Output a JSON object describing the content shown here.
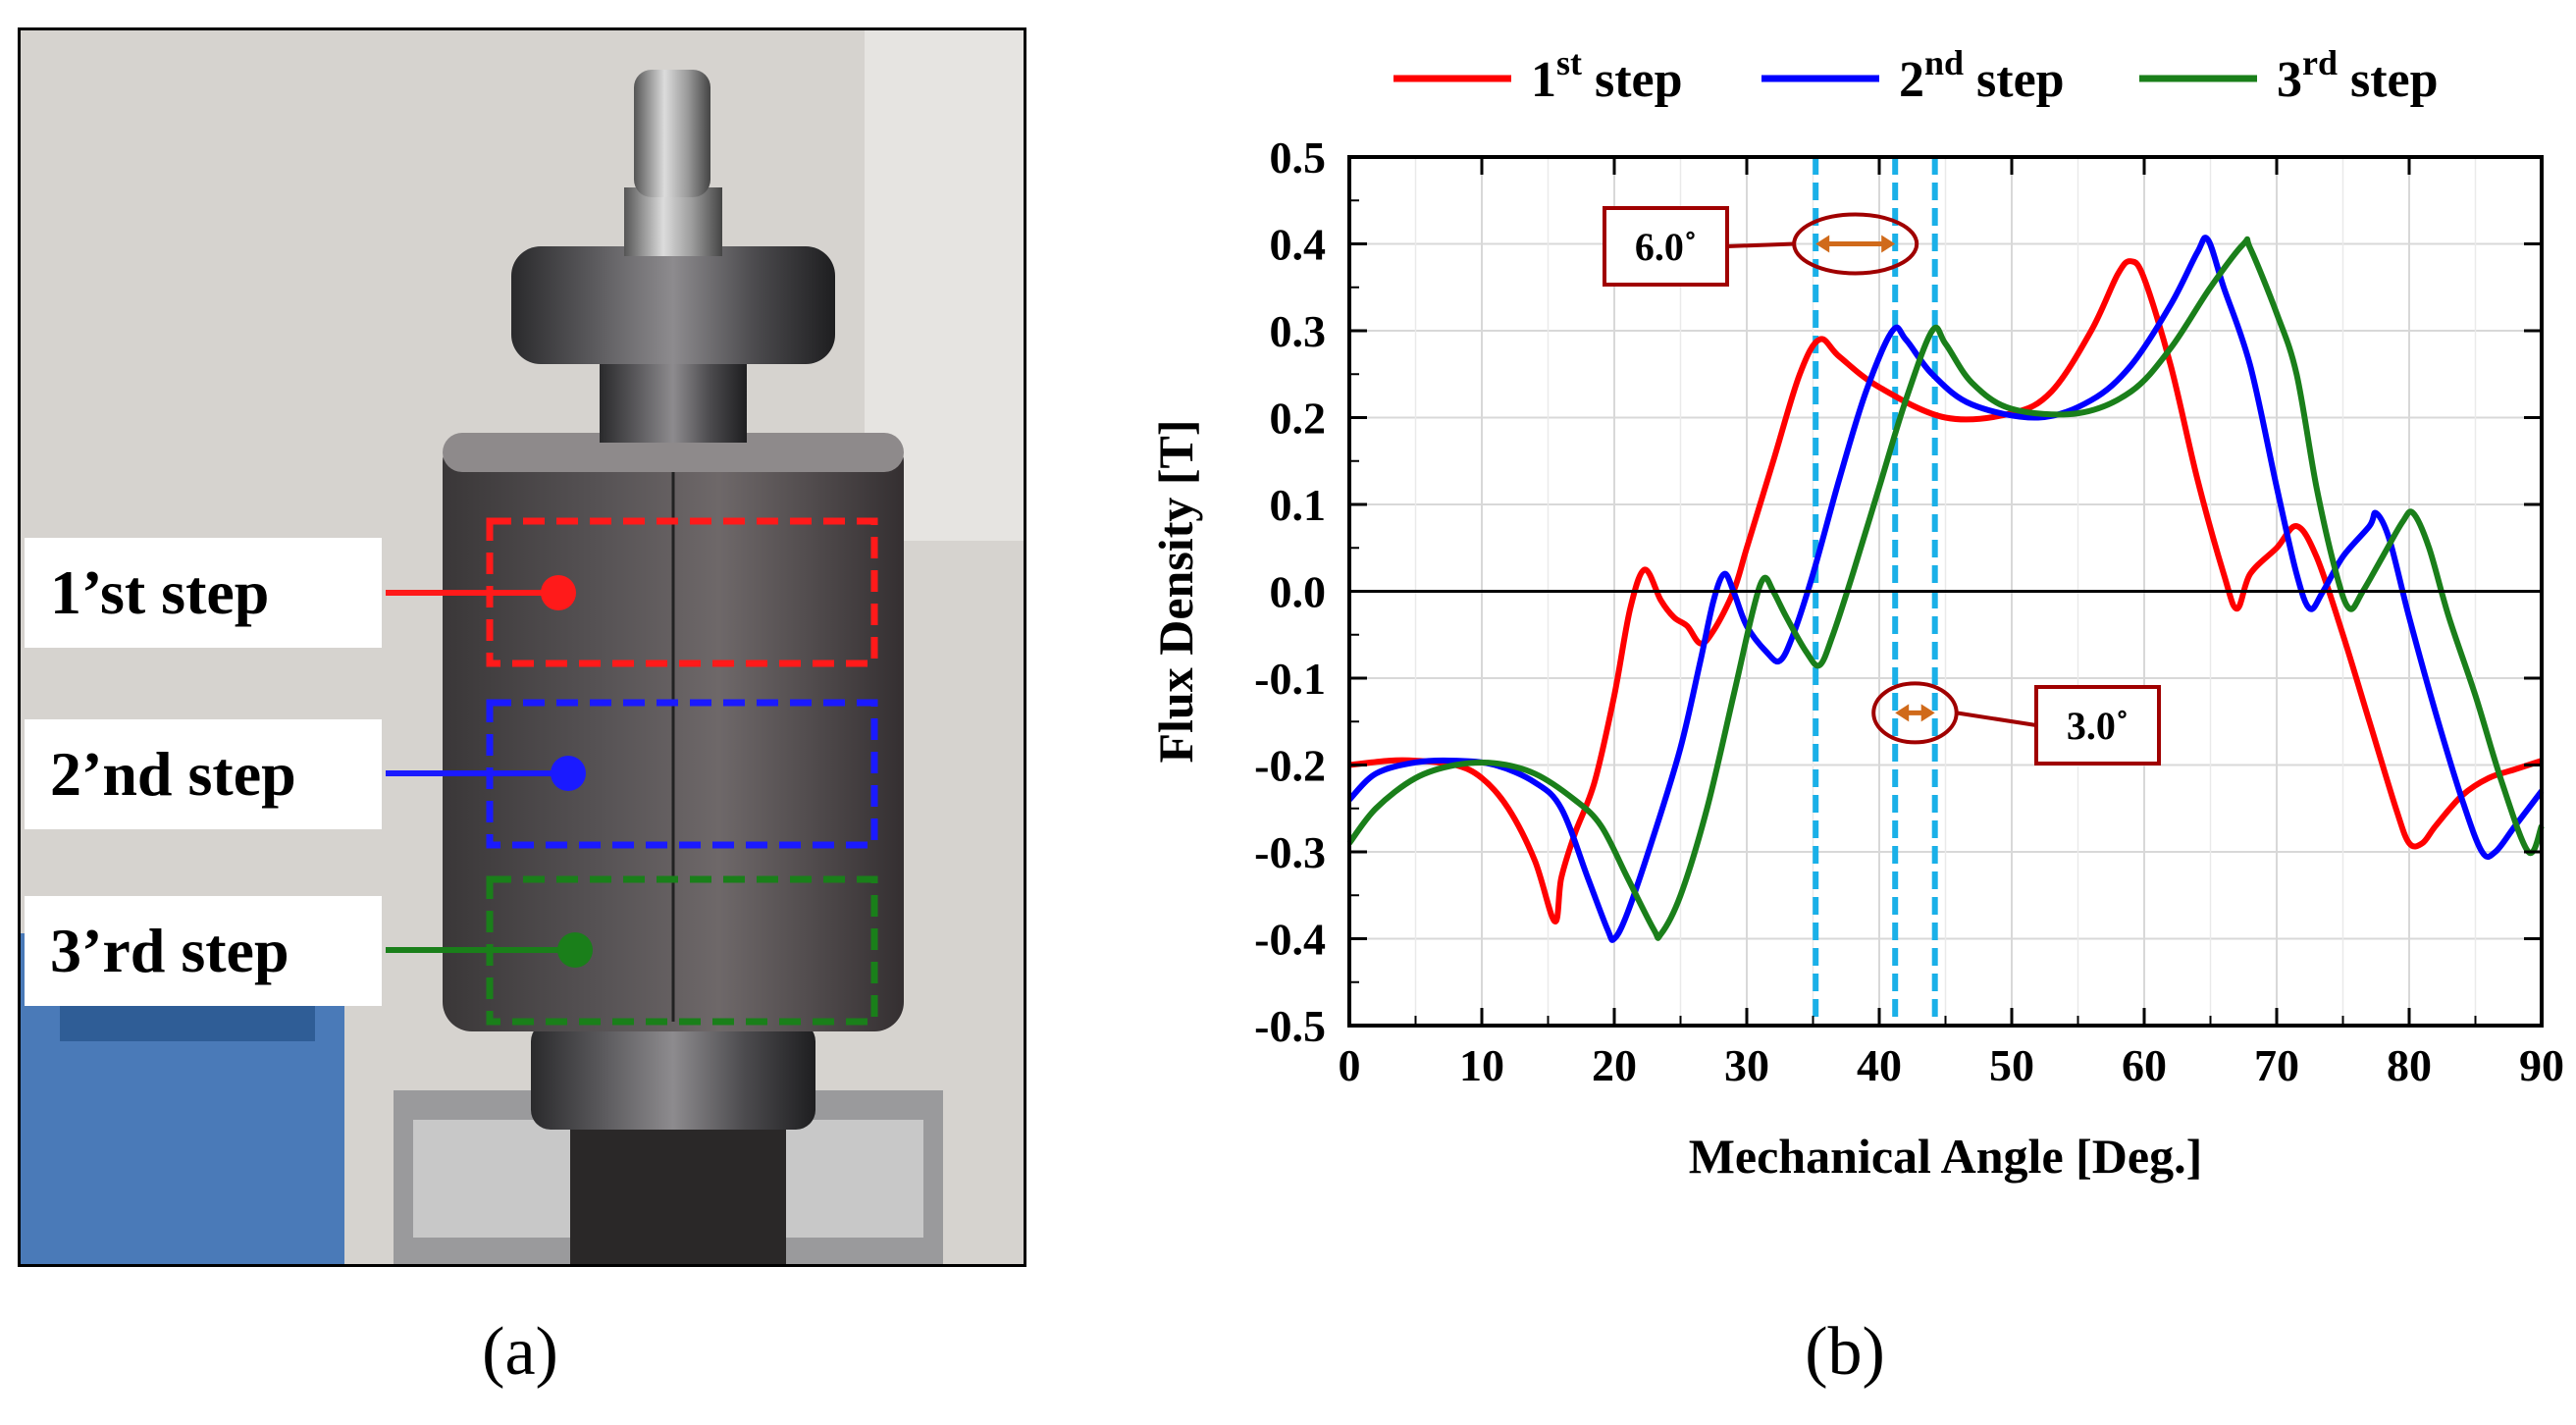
{
  "photo_panel": {
    "caption": "(a)",
    "labels": [
      {
        "text": "1’st step",
        "color": "#ff0000"
      },
      {
        "text": "2’nd step",
        "color": "#0000ff"
      },
      {
        "text": "3’rd step",
        "color": "#00aa00"
      }
    ]
  },
  "chart_panel": {
    "caption": "(b)"
  },
  "chart_data": {
    "type": "line",
    "xlabel": "Mechanical Angle [Deg.]",
    "ylabel": "Flux Density [T]",
    "xlim": [
      0,
      90
    ],
    "ylim": [
      -0.5,
      0.5
    ],
    "x_ticks": [
      "0",
      "10",
      "20",
      "30",
      "40",
      "50",
      "60",
      "70",
      "80",
      "90"
    ],
    "y_ticks": [
      "-0.5",
      "-0.4",
      "-0.3",
      "-0.2",
      "-0.1",
      "0.0",
      "0.1",
      "0.2",
      "0.3",
      "0.4",
      "0.5"
    ],
    "grid": true,
    "legend_position": "top",
    "series": [
      {
        "name": "1st step",
        "label_base": "1",
        "label_sup": "st",
        "label_tail": " step",
        "color": "#ff0000",
        "points": [
          [
            0,
            -0.2
          ],
          [
            3,
            -0.195
          ],
          [
            5,
            -0.195
          ],
          [
            8,
            -0.2
          ],
          [
            10,
            -0.215
          ],
          [
            12,
            -0.25
          ],
          [
            14,
            -0.31
          ],
          [
            15.5,
            -0.38
          ],
          [
            16,
            -0.33
          ],
          [
            17,
            -0.28
          ],
          [
            18.5,
            -0.22
          ],
          [
            20,
            -0.12
          ],
          [
            21.2,
            -0.02
          ],
          [
            22.3,
            0.025
          ],
          [
            23.5,
            -0.01
          ],
          [
            24.5,
            -0.03
          ],
          [
            25.5,
            -0.04
          ],
          [
            26.5,
            -0.06
          ],
          [
            27.5,
            -0.045
          ],
          [
            29,
            0.0
          ],
          [
            30,
            0.05
          ],
          [
            32,
            0.15
          ],
          [
            34,
            0.25
          ],
          [
            35.5,
            0.29
          ],
          [
            37,
            0.27
          ],
          [
            40,
            0.235
          ],
          [
            45,
            0.2
          ],
          [
            50,
            0.205
          ],
          [
            53,
            0.23
          ],
          [
            56,
            0.3
          ],
          [
            58,
            0.365
          ],
          [
            59,
            0.38
          ],
          [
            60,
            0.36
          ],
          [
            62,
            0.26
          ],
          [
            64,
            0.13
          ],
          [
            66,
            0.02
          ],
          [
            67,
            -0.02
          ],
          [
            68,
            0.02
          ],
          [
            70,
            0.05
          ],
          [
            71.5,
            0.075
          ],
          [
            73,
            0.04
          ],
          [
            75,
            -0.05
          ],
          [
            77,
            -0.15
          ],
          [
            79,
            -0.25
          ],
          [
            80,
            -0.29
          ],
          [
            81,
            -0.29
          ],
          [
            82,
            -0.27
          ],
          [
            84,
            -0.235
          ],
          [
            86,
            -0.215
          ],
          [
            88,
            -0.205
          ],
          [
            90,
            -0.195
          ]
        ]
      },
      {
        "name": "2nd step",
        "label_base": "2",
        "label_sup": "nd",
        "label_tail": " step",
        "color": "#0000ff",
        "points": [
          [
            0,
            -0.24
          ],
          [
            2,
            -0.21
          ],
          [
            5,
            -0.197
          ],
          [
            8,
            -0.195
          ],
          [
            11,
            -0.2
          ],
          [
            14,
            -0.22
          ],
          [
            16,
            -0.25
          ],
          [
            18,
            -0.33
          ],
          [
            19.5,
            -0.39
          ],
          [
            20,
            -0.4
          ],
          [
            21,
            -0.37
          ],
          [
            23,
            -0.28
          ],
          [
            25,
            -0.18
          ],
          [
            26.5,
            -0.08
          ],
          [
            27.5,
            -0.01
          ],
          [
            28.3,
            0.02
          ],
          [
            29,
            0.0
          ],
          [
            30,
            -0.04
          ],
          [
            31.5,
            -0.07
          ],
          [
            32.5,
            -0.08
          ],
          [
            33.5,
            -0.05
          ],
          [
            35,
            0.02
          ],
          [
            37,
            0.13
          ],
          [
            39,
            0.23
          ],
          [
            41,
            0.3
          ],
          [
            42,
            0.29
          ],
          [
            44,
            0.25
          ],
          [
            47,
            0.215
          ],
          [
            52,
            0.2
          ],
          [
            56,
            0.22
          ],
          [
            59,
            0.26
          ],
          [
            62,
            0.33
          ],
          [
            64,
            0.39
          ],
          [
            64.8,
            0.405
          ],
          [
            66,
            0.35
          ],
          [
            68,
            0.26
          ],
          [
            70,
            0.12
          ],
          [
            71.5,
            0.02
          ],
          [
            72.5,
            -0.02
          ],
          [
            73.5,
            0.0
          ],
          [
            75,
            0.04
          ],
          [
            77,
            0.075
          ],
          [
            77.5,
            0.09
          ],
          [
            78.5,
            0.06
          ],
          [
            80,
            -0.03
          ],
          [
            82,
            -0.14
          ],
          [
            84,
            -0.24
          ],
          [
            85.5,
            -0.3
          ],
          [
            86.5,
            -0.3
          ],
          [
            88,
            -0.27
          ],
          [
            90,
            -0.23
          ]
        ]
      },
      {
        "name": "3rd step",
        "label_base": "3",
        "label_sup": "rd",
        "label_tail": " step",
        "color": "#1a7f1a",
        "points": [
          [
            0,
            -0.29
          ],
          [
            2,
            -0.25
          ],
          [
            5,
            -0.215
          ],
          [
            8,
            -0.2
          ],
          [
            11,
            -0.198
          ],
          [
            14,
            -0.21
          ],
          [
            17,
            -0.24
          ],
          [
            19,
            -0.27
          ],
          [
            21,
            -0.33
          ],
          [
            23,
            -0.39
          ],
          [
            23.5,
            -0.395
          ],
          [
            25,
            -0.35
          ],
          [
            27,
            -0.25
          ],
          [
            29,
            -0.12
          ],
          [
            30.5,
            -0.02
          ],
          [
            31.3,
            0.015
          ],
          [
            32,
            0.0
          ],
          [
            33,
            -0.03
          ],
          [
            34.5,
            -0.07
          ],
          [
            35.5,
            -0.085
          ],
          [
            36.5,
            -0.05
          ],
          [
            38,
            0.02
          ],
          [
            40,
            0.12
          ],
          [
            42,
            0.22
          ],
          [
            44,
            0.3
          ],
          [
            45,
            0.285
          ],
          [
            47,
            0.24
          ],
          [
            50,
            0.21
          ],
          [
            55,
            0.205
          ],
          [
            59,
            0.23
          ],
          [
            62,
            0.28
          ],
          [
            65,
            0.35
          ],
          [
            67.5,
            0.4
          ],
          [
            68,
            0.395
          ],
          [
            70,
            0.32
          ],
          [
            71.5,
            0.25
          ],
          [
            73,
            0.12
          ],
          [
            74.5,
            0.02
          ],
          [
            75.5,
            -0.02
          ],
          [
            76.5,
            0.0
          ],
          [
            78,
            0.04
          ],
          [
            79.5,
            0.08
          ],
          [
            80.3,
            0.09
          ],
          [
            81.5,
            0.05
          ],
          [
            83,
            -0.03
          ],
          [
            85,
            -0.12
          ],
          [
            87,
            -0.22
          ],
          [
            89,
            -0.3
          ],
          [
            90,
            -0.27
          ]
        ]
      }
    ],
    "reference_lines": [
      {
        "x": 35.2,
        "color": "#1ab0e8"
      },
      {
        "x": 41.2,
        "color": "#1ab0e8"
      },
      {
        "x": 44.2,
        "color": "#1ab0e8"
      }
    ],
    "annotations": [
      {
        "text": "6.0˚",
        "from": 35.2,
        "to": 41.2,
        "y": 0.4
      },
      {
        "text": "3.0˚",
        "from": 41.2,
        "to": 44.2,
        "y": -0.14
      }
    ]
  }
}
